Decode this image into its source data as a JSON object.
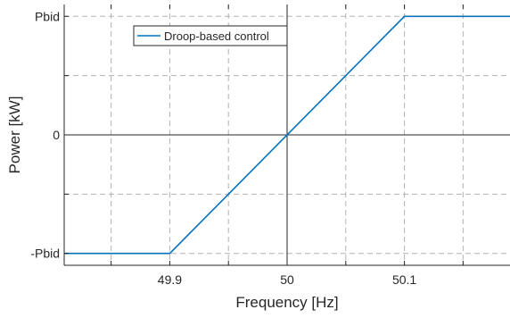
{
  "chart_data": {
    "type": "line",
    "title": "",
    "xlabel": "Frequency [Hz]",
    "ylabel": "Power [kW]",
    "xlim": [
      49.81,
      50.19
    ],
    "ylim": [
      -1.1,
      1.1
    ],
    "x_ticks": [
      49.9,
      50,
      50.1
    ],
    "x_tick_labels": [
      "49.9",
      "50",
      "50.1"
    ],
    "x_grid_extra": [
      49.85,
      49.95,
      50.05,
      50.15
    ],
    "y_ticks": [
      -1,
      0,
      1
    ],
    "y_tick_labels": [
      "-Pbid",
      "0",
      "Pbid"
    ],
    "y_grid_extra": [
      -0.5,
      0.5
    ],
    "grid": true,
    "legend_position": "top-left",
    "series": [
      {
        "name": "Droop-based control",
        "color": "#0072BD",
        "x": [
          49.81,
          49.9,
          50.1,
          50.19
        ],
        "y": [
          -1,
          -1,
          1,
          1
        ]
      }
    ]
  }
}
